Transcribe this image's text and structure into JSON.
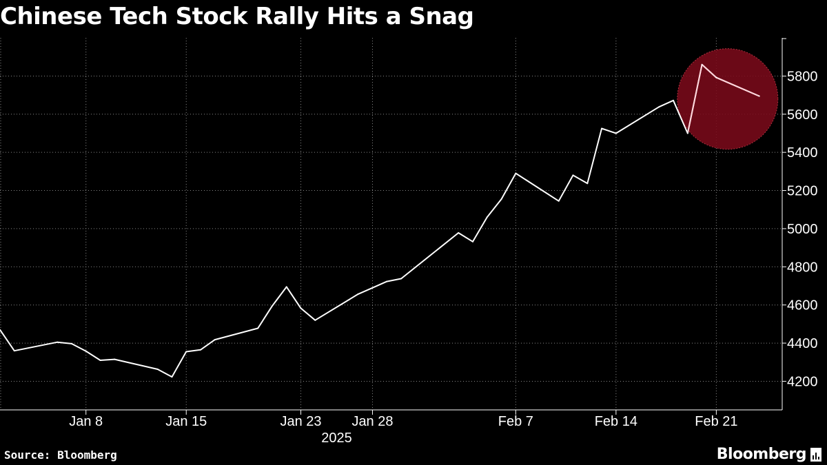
{
  "title": "Chinese Tech Stock Rally Hits a Snag",
  "source": "Source: Bloomberg",
  "brand": "Bloomberg",
  "colors": {
    "background": "#000000",
    "line": "#ffffff",
    "grid": "#8a8a8a",
    "highlight": "#7a0a1a"
  },
  "chart_data": {
    "type": "line",
    "title": "Chinese Tech Stock Rally Hits a Snag",
    "x_year_label": "2025",
    "x_tick_labels": [
      {
        "date": "2025-01-08",
        "label": "Jan 8"
      },
      {
        "date": "2025-01-15",
        "label": "Jan 15"
      },
      {
        "date": "2025-01-23",
        "label": "Jan 23"
      },
      {
        "date": "2025-01-28",
        "label": "Jan 28"
      },
      {
        "date": "2025-02-07",
        "label": "Feb 7"
      },
      {
        "date": "2025-02-14",
        "label": "Feb 14"
      },
      {
        "date": "2025-02-21",
        "label": "Feb 21"
      }
    ],
    "y_ticks": [
      4200,
      4400,
      4600,
      4800,
      5000,
      5200,
      5400,
      5600,
      5800
    ],
    "ylim": [
      4050,
      6000
    ],
    "grid": true,
    "highlight_from": "2025-02-19",
    "series": [
      {
        "points": [
          {
            "x": "2025-01-02",
            "y": 4470
          },
          {
            "x": "2025-01-03",
            "y": 4360
          },
          {
            "x": "2025-01-06",
            "y": 4405
          },
          {
            "x": "2025-01-07",
            "y": 4397
          },
          {
            "x": "2025-01-08",
            "y": 4358
          },
          {
            "x": "2025-01-09",
            "y": 4310
          },
          {
            "x": "2025-01-10",
            "y": 4315
          },
          {
            "x": "2025-01-13",
            "y": 4263
          },
          {
            "x": "2025-01-14",
            "y": 4223
          },
          {
            "x": "2025-01-15",
            "y": 4355
          },
          {
            "x": "2025-01-16",
            "y": 4365
          },
          {
            "x": "2025-01-17",
            "y": 4418
          },
          {
            "x": "2025-01-20",
            "y": 4478
          },
          {
            "x": "2025-01-21",
            "y": 4595
          },
          {
            "x": "2025-01-22",
            "y": 4695
          },
          {
            "x": "2025-01-23",
            "y": 4583
          },
          {
            "x": "2025-01-24",
            "y": 4520
          },
          {
            "x": "2025-01-27",
            "y": 4657
          },
          {
            "x": "2025-01-28",
            "y": 4690
          },
          {
            "x": "2025-01-29",
            "y": 4723
          },
          {
            "x": "2025-01-30",
            "y": 4738
          },
          {
            "x": "2025-02-03",
            "y": 4978
          },
          {
            "x": "2025-02-04",
            "y": 4932
          },
          {
            "x": "2025-02-05",
            "y": 5060
          },
          {
            "x": "2025-02-06",
            "y": 5155
          },
          {
            "x": "2025-02-07",
            "y": 5290
          },
          {
            "x": "2025-02-10",
            "y": 5145
          },
          {
            "x": "2025-02-11",
            "y": 5280
          },
          {
            "x": "2025-02-12",
            "y": 5237
          },
          {
            "x": "2025-02-13",
            "y": 5525
          },
          {
            "x": "2025-02-14",
            "y": 5500
          },
          {
            "x": "2025-02-17",
            "y": 5638
          },
          {
            "x": "2025-02-18",
            "y": 5672
          },
          {
            "x": "2025-02-19",
            "y": 5500
          },
          {
            "x": "2025-02-20",
            "y": 5860
          },
          {
            "x": "2025-02-21",
            "y": 5792
          },
          {
            "x": "2025-02-24",
            "y": 5695
          }
        ]
      }
    ]
  }
}
